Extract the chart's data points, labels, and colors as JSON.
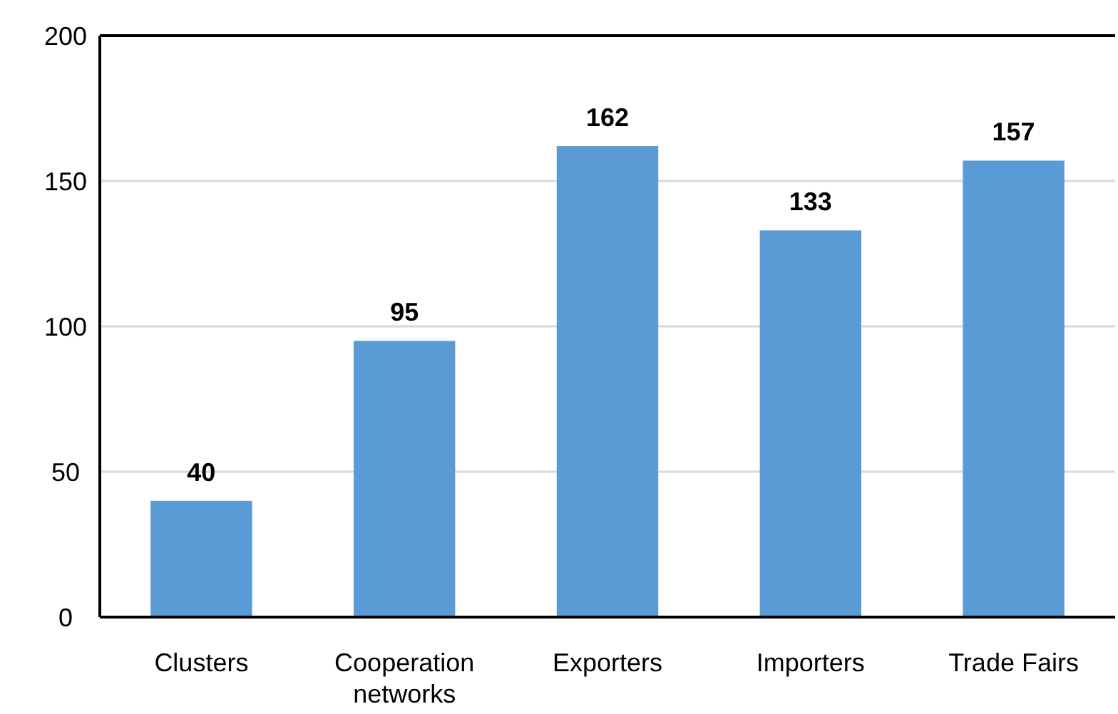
{
  "chart_data": {
    "type": "bar",
    "categories": [
      "Clusters",
      "Cooperation networks",
      "Exporters",
      "Importers",
      "Trade Fairs"
    ],
    "values": [
      40,
      95,
      162,
      133,
      157
    ],
    "color": "#5b9bd5",
    "ylim": [
      0,
      200
    ],
    "yticks": [
      0,
      50,
      100,
      150,
      200
    ],
    "grid": "y",
    "data_labels": true
  }
}
